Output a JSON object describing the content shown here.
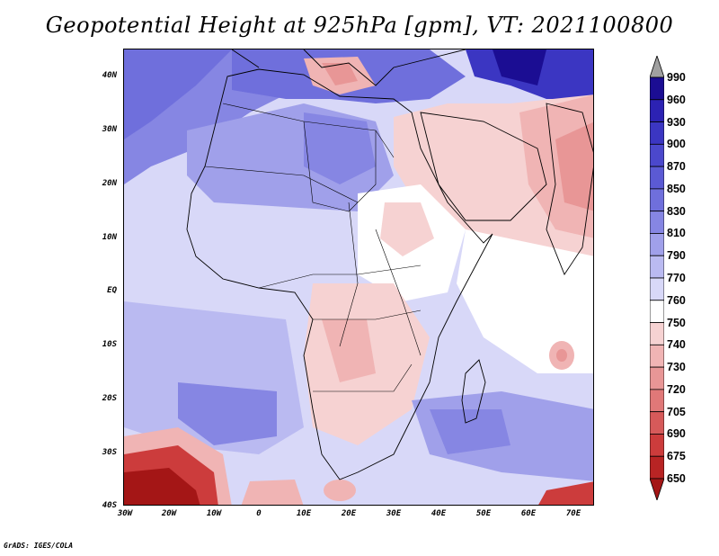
{
  "title": "Geopotential Height at 925hPa [gpm], VT: 2021100800",
  "footer": "GrADS: IGES/COLA",
  "map": {
    "variable": "Geopotential Height",
    "level": "925hPa",
    "units": "gpm",
    "valid_time": "2021100800",
    "lon_range": [
      -30,
      75
    ],
    "lat_range": [
      -40,
      45
    ]
  },
  "lat_ticks": [
    {
      "value": 40,
      "label": "40N"
    },
    {
      "value": 30,
      "label": "30N"
    },
    {
      "value": 20,
      "label": "20N"
    },
    {
      "value": 10,
      "label": "10N"
    },
    {
      "value": 0,
      "label": "EQ"
    },
    {
      "value": -10,
      "label": "10S"
    },
    {
      "value": -20,
      "label": "20S"
    },
    {
      "value": -30,
      "label": "30S"
    },
    {
      "value": -40,
      "label": "40S"
    }
  ],
  "lon_ticks": [
    {
      "value": -30,
      "label": "30W"
    },
    {
      "value": -20,
      "label": "20W"
    },
    {
      "value": -10,
      "label": "10W"
    },
    {
      "value": 0,
      "label": "0"
    },
    {
      "value": 10,
      "label": "10E"
    },
    {
      "value": 20,
      "label": "20E"
    },
    {
      "value": 30,
      "label": "30E"
    },
    {
      "value": 40,
      "label": "40E"
    },
    {
      "value": 50,
      "label": "50E"
    },
    {
      "value": 60,
      "label": "60E"
    },
    {
      "value": 70,
      "label": "70E"
    }
  ],
  "colorbar": {
    "levels": [
      "990",
      "960",
      "930",
      "900",
      "870",
      "850",
      "830",
      "810",
      "790",
      "770",
      "760",
      "750",
      "740",
      "730",
      "720",
      "705",
      "690",
      "675",
      "650"
    ],
    "colors": [
      "#a0a0a0",
      "#1b0d93",
      "#2c22b3",
      "#3b36c2",
      "#4b48cc",
      "#5b5ad4",
      "#6f6fdc",
      "#8686e3",
      "#a0a0ea",
      "#babaf1",
      "#d8d8f8",
      "#ffffff",
      "#f6d2d2",
      "#f0b4b4",
      "#e89696",
      "#e07878",
      "#d65a5a",
      "#cc3c3c",
      "#b82424",
      "#a41616"
    ]
  },
  "fields": {
    "background": "#d8d8f8",
    "land_fill": "#d8d8f8",
    "deep_blue": "#2c22b3",
    "mid_blue": "#6f6fdc",
    "light_blue": "#babaf1",
    "pale_blue": "#d8d8f8",
    "white": "#ffffff",
    "pale_red": "#f6d2d2",
    "light_red": "#f0b4b4",
    "mid_red": "#e89696",
    "dark_red": "#b82424",
    "outline": "#000000"
  }
}
